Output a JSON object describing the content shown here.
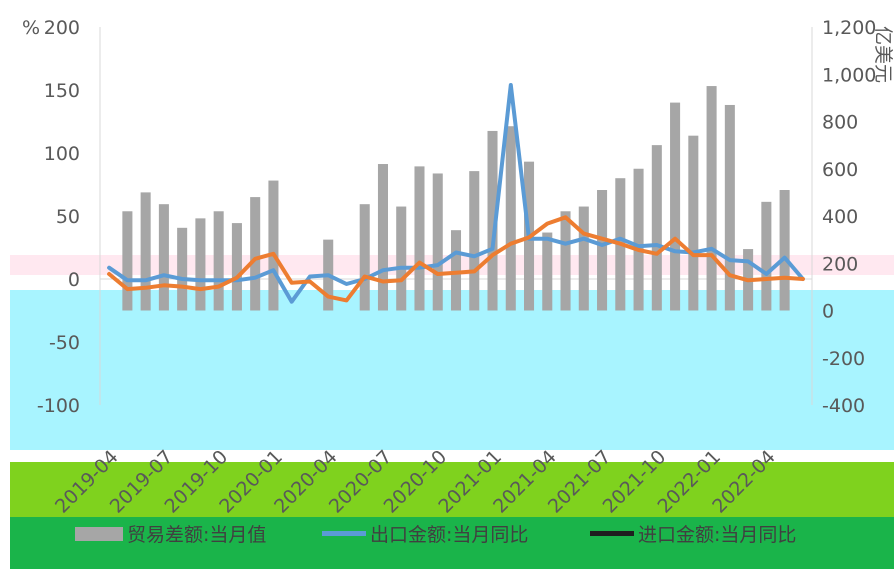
{
  "chart_data": {
    "type": "bar+line",
    "title": "",
    "left_axis": {
      "unit": "%",
      "ticks": [
        "200",
        "150",
        "100",
        "50",
        "0",
        "-50",
        "-100"
      ],
      "range": [
        -100,
        200
      ]
    },
    "right_axis": {
      "unit": "亿美元",
      "ticks": [
        "1,200",
        "1,000",
        "800",
        "600",
        "400",
        "200",
        "0",
        "-200",
        "-400"
      ],
      "range": [
        -400,
        1200
      ]
    },
    "x_tick_labels": [
      "2019-04",
      "2019-07",
      "2019-10",
      "2020-01",
      "2020-04",
      "2020-07",
      "2020-10",
      "2021-01",
      "2021-04",
      "2021-07",
      "2021-10",
      "2022-01",
      "2022-04"
    ],
    "x": [
      "2019-04",
      "2019-05",
      "2019-06",
      "2019-07",
      "2019-08",
      "2019-09",
      "2019-10",
      "2019-11",
      "2019-12",
      "2020-01",
      "2020-02",
      "2020-03",
      "2020-04",
      "2020-05",
      "2020-06",
      "2020-07",
      "2020-08",
      "2020-09",
      "2020-10",
      "2020-11",
      "2020-12",
      "2021-01",
      "2021-02",
      "2021-03",
      "2021-04",
      "2021-05",
      "2021-06",
      "2021-07",
      "2021-08",
      "2021-09",
      "2021-10",
      "2021-11",
      "2021-12",
      "2022-01",
      "2022-02",
      "2022-03",
      "2022-04",
      "2022-05",
      "2022-06"
    ],
    "series": [
      {
        "name": "贸易差额:当月值",
        "type": "bar",
        "axis": "right",
        "color": "#a6a6a6",
        "values": [
          0,
          420,
          500,
          450,
          350,
          390,
          420,
          370,
          480,
          550,
          0,
          0,
          300,
          0,
          450,
          620,
          440,
          610,
          580,
          340,
          590,
          760,
          780,
          630,
          330,
          420,
          440,
          510,
          560,
          600,
          700,
          880,
          740,
          950,
          870,
          260,
          460,
          510,
          0
        ]
      },
      {
        "name": "出口金额:当月同比",
        "type": "line",
        "axis": "left",
        "color": "#5b9bd5",
        "values": [
          9,
          -1,
          -1,
          3,
          0,
          -1,
          -1,
          -1,
          1,
          7,
          -18,
          2,
          3,
          -4,
          0,
          7,
          9,
          9,
          11,
          21,
          18,
          24,
          154,
          32,
          32,
          28,
          32,
          27,
          32,
          26,
          27,
          22,
          21,
          24,
          15,
          14,
          4,
          17,
          0
        ]
      },
      {
        "name": "进口金额:当月同比",
        "type": "line",
        "axis": "left",
        "color": "#ed7d31",
        "values": [
          4,
          -8,
          -7,
          -5,
          -6,
          -8,
          -6,
          1,
          16,
          20,
          -3,
          -2,
          -14,
          -17,
          2,
          -2,
          -1,
          13,
          4,
          5,
          6,
          19,
          28,
          33,
          44,
          49,
          36,
          32,
          28,
          23,
          20,
          32,
          19,
          19,
          3,
          -1,
          0,
          1,
          0
        ]
      }
    ],
    "legend_position": "bottom",
    "grid": false
  }
}
